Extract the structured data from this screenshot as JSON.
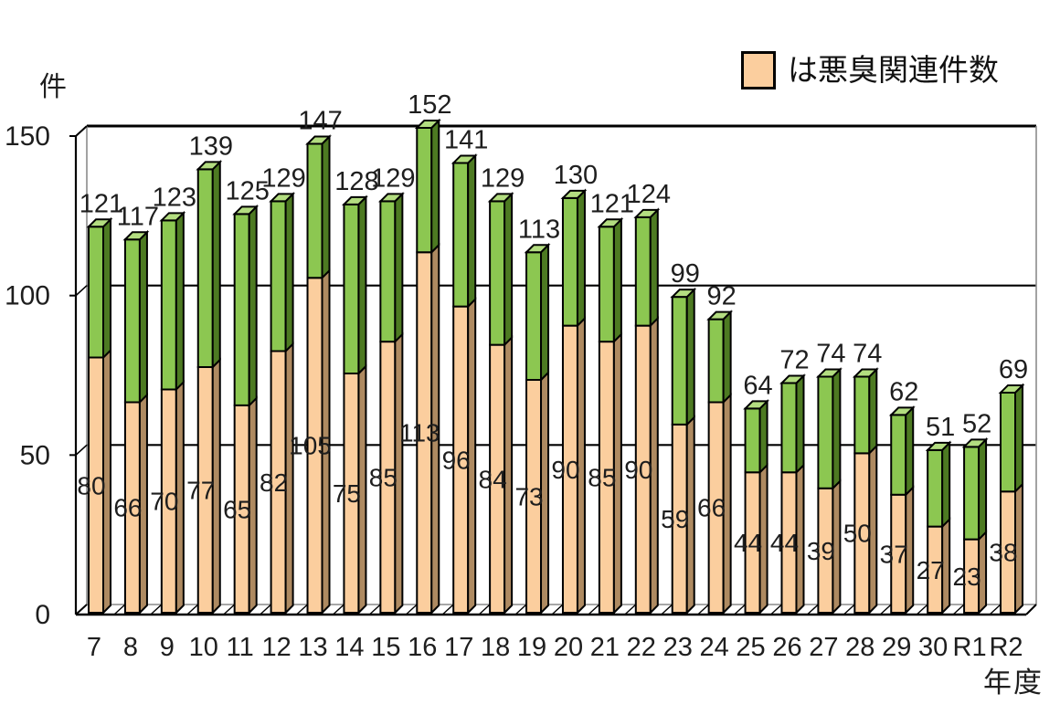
{
  "page": {
    "background": "#FFFFFF"
  },
  "chart_data": {
    "type": "bar",
    "style": "3d-stacked-column",
    "title": "",
    "ylabel": "件",
    "xlabel": "年度",
    "ylim": [
      0,
      150
    ],
    "yticks": [
      0,
      50,
      100,
      150
    ],
    "grid": true,
    "legend": {
      "label": "は悪臭関連件数",
      "swatch_color": "#FBCE9E",
      "position": "top-right"
    },
    "categories": [
      "7",
      "8",
      "9",
      "10",
      "11",
      "12",
      "13",
      "14",
      "15",
      "16",
      "17",
      "18",
      "19",
      "20",
      "21",
      "22",
      "23",
      "24",
      "25",
      "26",
      "27",
      "28",
      "29",
      "30",
      "R1",
      "R2"
    ],
    "series": [
      {
        "name": "悪臭関連件数",
        "legend_label": "は悪臭関連件数",
        "color": "#FBCE9E",
        "side_color": "#AE8A61",
        "values": [
          80,
          66,
          70,
          77,
          65,
          82,
          105,
          75,
          85,
          113,
          96,
          84,
          73,
          90,
          85,
          90,
          59,
          66,
          44,
          44,
          39,
          50,
          37,
          27,
          23,
          38
        ]
      }
    ],
    "totals": [
      121,
      117,
      123,
      139,
      125,
      129,
      147,
      128,
      129,
      152,
      141,
      129,
      113,
      130,
      121,
      124,
      99,
      92,
      64,
      72,
      74,
      74,
      62,
      51,
      52,
      69
    ],
    "colors": {
      "remainder_front": "#8CC751",
      "remainder_side": "#4D7A22",
      "remainder_top": "#B3DD80",
      "outline": "#000000",
      "gridline": "#000000",
      "wall_edge": "#8A8A8A",
      "label_text": "#1E1E1E",
      "background": "#FFFFFF"
    }
  }
}
